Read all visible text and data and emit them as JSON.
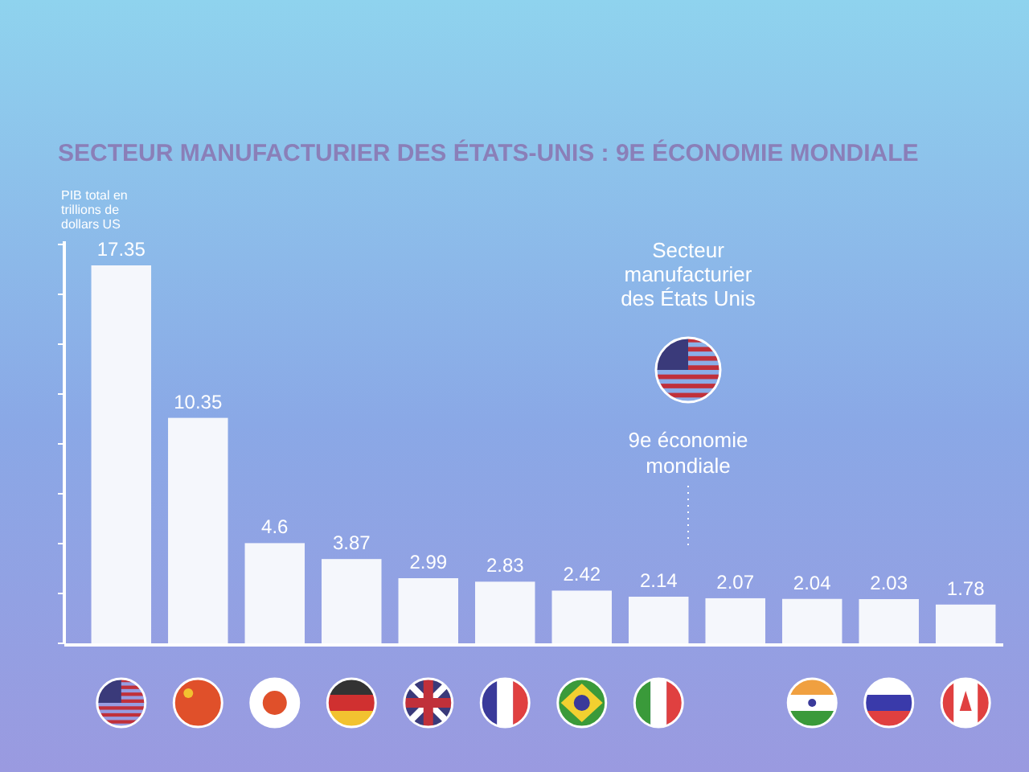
{
  "chart_data": {
    "type": "bar",
    "title": "SECTEUR MANUFACTURIER DES ÉTATS-UNIS : 9E ÉCONOMIE MONDIALE",
    "ylabel": "PIB total en trillions de dollars US",
    "categories": [
      null,
      null,
      null,
      null,
      null,
      null,
      null,
      null,
      null,
      null,
      null,
      null
    ],
    "values": [
      17.35,
      10.35,
      4.6,
      3.87,
      2.99,
      2.83,
      2.42,
      2.14,
      2.07,
      2.04,
      2.03,
      1.78
    ],
    "color": "#f5f7fc",
    "relative": false,
    "data_labels": true,
    "annotations": [
      "Secteur manufacturier des États Unis",
      "9e économie mondiale"
    ]
  }
}
